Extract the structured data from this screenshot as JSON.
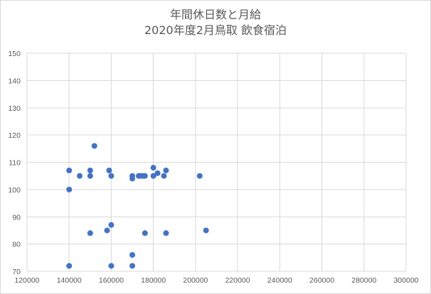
{
  "chart_data": {
    "type": "scatter",
    "title_line1": "年間休日数と月給",
    "title_line2": "2020年度2月鳥取 飲食宿泊",
    "xlabel": "",
    "ylabel": "",
    "xlim": [
      120000,
      300000
    ],
    "ylim": [
      70,
      150
    ],
    "x_ticks": [
      "120000",
      "140000",
      "160000",
      "180000",
      "200000",
      "220000",
      "240000",
      "260000",
      "280000",
      "300000"
    ],
    "y_ticks": [
      "70",
      "80",
      "90",
      "100",
      "110",
      "120",
      "130",
      "140",
      "150"
    ],
    "grid": true,
    "marker_color": "#4472c4",
    "points": [
      {
        "x": 140000,
        "y": 107
      },
      {
        "x": 140000,
        "y": 100
      },
      {
        "x": 140000,
        "y": 72
      },
      {
        "x": 145000,
        "y": 105
      },
      {
        "x": 150000,
        "y": 107
      },
      {
        "x": 150000,
        "y": 105
      },
      {
        "x": 150000,
        "y": 84
      },
      {
        "x": 152000,
        "y": 116
      },
      {
        "x": 158000,
        "y": 85
      },
      {
        "x": 159000,
        "y": 107
      },
      {
        "x": 160000,
        "y": 105
      },
      {
        "x": 160000,
        "y": 87
      },
      {
        "x": 160000,
        "y": 72
      },
      {
        "x": 170000,
        "y": 105
      },
      {
        "x": 170000,
        "y": 104
      },
      {
        "x": 170000,
        "y": 76
      },
      {
        "x": 170000,
        "y": 72
      },
      {
        "x": 173000,
        "y": 105
      },
      {
        "x": 174000,
        "y": 105
      },
      {
        "x": 175000,
        "y": 105
      },
      {
        "x": 176000,
        "y": 105
      },
      {
        "x": 176000,
        "y": 84
      },
      {
        "x": 180000,
        "y": 108
      },
      {
        "x": 180000,
        "y": 105
      },
      {
        "x": 182000,
        "y": 106
      },
      {
        "x": 185000,
        "y": 105
      },
      {
        "x": 186000,
        "y": 107
      },
      {
        "x": 186000,
        "y": 84
      },
      {
        "x": 202000,
        "y": 105
      },
      {
        "x": 205000,
        "y": 85
      }
    ]
  }
}
